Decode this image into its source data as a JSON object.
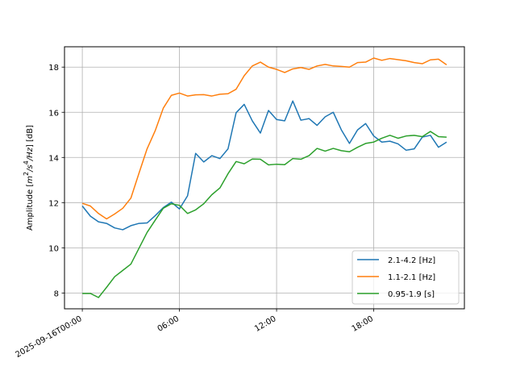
{
  "chart_data": {
    "type": "line",
    "ylabel": "Amplitude [$m^2/s^4/Hz$] [dB]",
    "ylabel_parts": {
      "prefix": "Amplitude [",
      "m": "m",
      "m_sup": "2",
      "slash_s": "/s",
      "s_sup": "4",
      "hz": "/Hz",
      "suffix": "] [dB]"
    },
    "x_start": "2025-09-16T00:00",
    "x_step_hours": 0.5,
    "xlim_hours": [
      -1.1,
      23.6
    ],
    "ylim": [
      7.3,
      18.9
    ],
    "x_ticks": [
      {
        "hour": 0,
        "label": "2025-09-16T00:00"
      },
      {
        "hour": 6,
        "label": "06:00"
      },
      {
        "hour": 12,
        "label": "12:00"
      },
      {
        "hour": 18,
        "label": "18:00"
      }
    ],
    "y_ticks": [
      {
        "value": 8,
        "label": "8"
      },
      {
        "value": 10,
        "label": "10"
      },
      {
        "value": 12,
        "label": "12"
      },
      {
        "value": 14,
        "label": "14"
      },
      {
        "value": 16,
        "label": "16"
      },
      {
        "value": 18,
        "label": "18"
      }
    ],
    "grid": true,
    "legend_position": "lower-right",
    "series": [
      {
        "name": "2.1-4.2 [Hz]",
        "color": "#1f77b4",
        "values": [
          11.85,
          11.4,
          11.15,
          11.08,
          10.88,
          10.8,
          10.98,
          11.08,
          11.1,
          11.42,
          11.78,
          12.02,
          11.72,
          12.3,
          14.18,
          13.8,
          14.08,
          13.95,
          14.38,
          15.98,
          16.35,
          15.62,
          15.08,
          16.08,
          15.68,
          15.62,
          16.5,
          15.65,
          15.72,
          15.42,
          15.8,
          16.0,
          15.22,
          14.62,
          15.22,
          15.5,
          14.95,
          14.68,
          14.72,
          14.6,
          14.32,
          14.38,
          14.9,
          14.98,
          14.45,
          14.68
        ]
      },
      {
        "name": "1.1-2.1 [Hz]",
        "color": "#ff7f0e",
        "values": [
          11.97,
          11.85,
          11.52,
          11.28,
          11.5,
          11.75,
          12.2,
          13.3,
          14.38,
          15.18,
          16.18,
          16.75,
          16.85,
          16.72,
          16.77,
          16.78,
          16.72,
          16.8,
          16.82,
          17.02,
          17.62,
          18.05,
          18.22,
          18.0,
          17.9,
          17.76,
          17.92,
          17.98,
          17.9,
          18.05,
          18.12,
          18.05,
          18.03,
          18.0,
          18.2,
          18.22,
          18.4,
          18.3,
          18.38,
          18.33,
          18.28,
          18.2,
          18.15,
          18.32,
          18.35,
          18.1
        ]
      },
      {
        "name": "0.95-1.9 [s]",
        "color": "#2ca02c",
        "values": [
          7.98,
          7.98,
          7.8,
          8.25,
          8.72,
          9.0,
          9.28,
          9.98,
          10.68,
          11.22,
          11.75,
          11.95,
          11.88,
          11.52,
          11.68,
          11.95,
          12.35,
          12.65,
          13.28,
          13.82,
          13.72,
          13.93,
          13.92,
          13.67,
          13.7,
          13.68,
          13.95,
          13.92,
          14.08,
          14.4,
          14.28,
          14.4,
          14.3,
          14.25,
          14.45,
          14.62,
          14.68,
          14.85,
          14.98,
          14.85,
          14.95,
          14.98,
          14.92,
          15.15,
          14.92,
          14.9
        ]
      }
    ]
  }
}
